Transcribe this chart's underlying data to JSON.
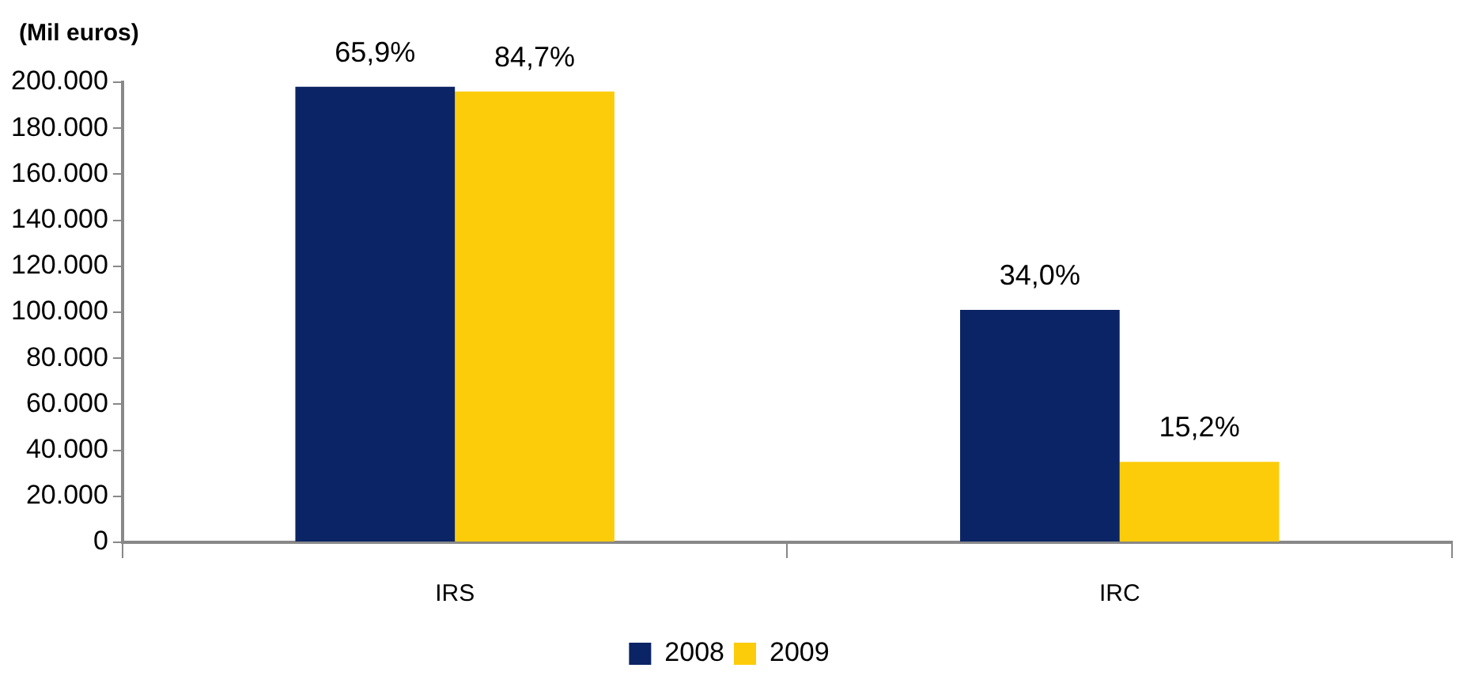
{
  "chart_data": {
    "type": "bar",
    "ylabel": "(Mil euros)",
    "categories": [
      "IRS",
      "IRC"
    ],
    "series": [
      {
        "name": "2008",
        "color": "#0b2466",
        "values": [
          198000,
          101000
        ]
      },
      {
        "name": "2009",
        "color": "#fccc0a",
        "values": [
          196000,
          35000
        ]
      }
    ],
    "annotations": [
      {
        "text": "65,9%",
        "x": "IRS",
        "y": 198000
      },
      {
        "text": "84,7%",
        "x": "IRS",
        "y": 196000
      },
      {
        "text": "34,0%",
        "x": "IRC",
        "y": 101000
      },
      {
        "text": "15,2%",
        "x": "IRC",
        "y": 35000
      }
    ],
    "ylim": [
      0,
      200000
    ],
    "yticks": [
      {
        "value": 0,
        "label": "0"
      },
      {
        "value": 20000,
        "label": "20.000"
      },
      {
        "value": 40000,
        "label": "40.000"
      },
      {
        "value": 60000,
        "label": "60.000"
      },
      {
        "value": 80000,
        "label": "80.000"
      },
      {
        "value": 100000,
        "label": "100.000"
      },
      {
        "value": 120000,
        "label": "120.000"
      },
      {
        "value": 140000,
        "label": "140.000"
      },
      {
        "value": 160000,
        "label": "160.000"
      },
      {
        "value": 180000,
        "label": "180.000"
      },
      {
        "value": 200000,
        "label": "200.000"
      }
    ],
    "grid": false,
    "legend": "bottom"
  }
}
